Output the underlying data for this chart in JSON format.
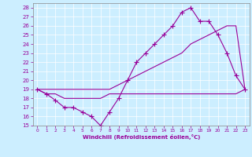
{
  "xlabel": "Windchill (Refroidissement éolien,°C)",
  "bg_color": "#cceeff",
  "line_color": "#990099",
  "ylim": [
    15,
    28.5
  ],
  "xlim": [
    -0.5,
    23.5
  ],
  "yticks": [
    15,
    16,
    17,
    18,
    19,
    20,
    21,
    22,
    23,
    24,
    25,
    26,
    27,
    28
  ],
  "xticks": [
    0,
    1,
    2,
    3,
    4,
    5,
    6,
    7,
    8,
    9,
    10,
    11,
    12,
    13,
    14,
    15,
    16,
    17,
    18,
    19,
    20,
    21,
    22,
    23
  ],
  "series": [
    {
      "x": [
        0,
        1,
        2,
        3,
        4,
        5,
        6,
        7,
        8,
        9,
        10,
        11,
        12,
        13,
        14,
        15,
        16,
        17,
        18,
        19,
        20,
        21,
        22,
        23
      ],
      "y": [
        19,
        18.5,
        18.5,
        18,
        18,
        18,
        18,
        18,
        18.5,
        18.5,
        18.5,
        18.5,
        18.5,
        18.5,
        18.5,
        18.5,
        18.5,
        18.5,
        18.5,
        18.5,
        18.5,
        18.5,
        18.5,
        19
      ],
      "marker": null,
      "lw": 0.8
    },
    {
      "x": [
        0,
        1,
        2,
        3,
        4,
        5,
        6,
        7,
        8,
        9,
        10,
        11,
        12,
        13,
        14,
        15,
        16,
        17,
        18,
        19,
        20,
        21,
        22,
        23
      ],
      "y": [
        19,
        19,
        19,
        19,
        19,
        19,
        19,
        19,
        19,
        19.5,
        20,
        20.5,
        21,
        21.5,
        22,
        22.5,
        23,
        24,
        24.5,
        25,
        25.5,
        26,
        26,
        19
      ],
      "marker": null,
      "lw": 0.8
    },
    {
      "x": [
        0,
        1,
        2,
        3,
        4,
        5,
        6,
        7,
        8,
        9,
        10,
        11,
        12,
        13,
        14,
        15,
        16,
        17,
        18,
        19,
        20,
        21,
        22,
        23
      ],
      "y": [
        19,
        18.5,
        17.8,
        17,
        17,
        16.5,
        16,
        15,
        16.5,
        18,
        20,
        22,
        23,
        24,
        25,
        26,
        27.5,
        28,
        26.5,
        26.5,
        25,
        23,
        20.5,
        19
      ],
      "marker": "+",
      "markersize": 4,
      "lw": 0.8
    }
  ]
}
